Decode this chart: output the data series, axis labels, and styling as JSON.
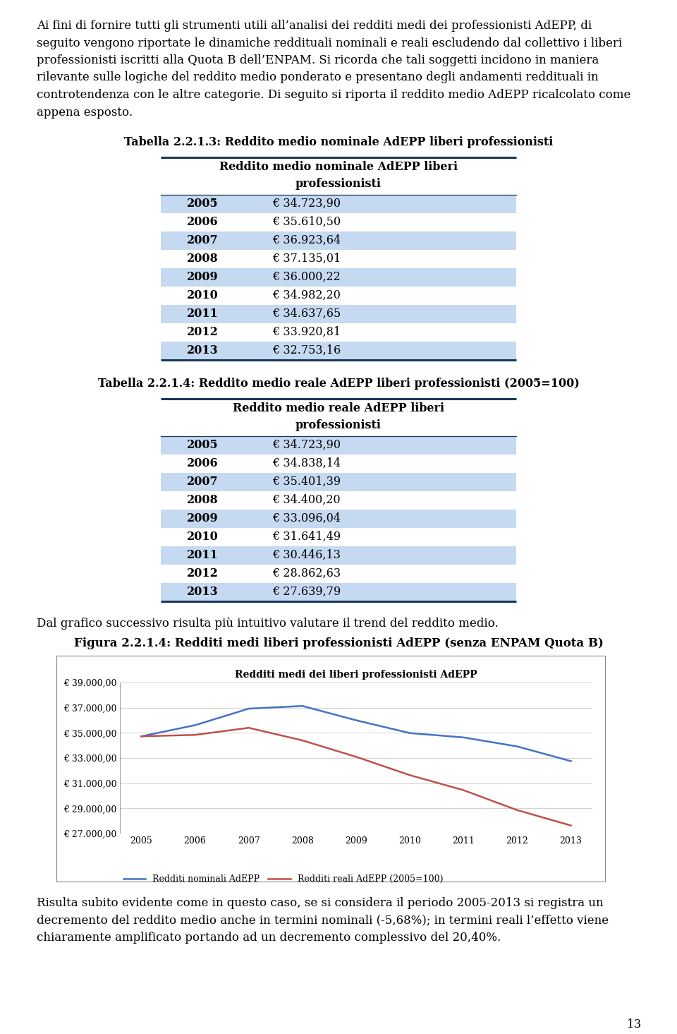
{
  "intro_lines": [
    "Ai fini di fornire tutti gli strumenti utili all’analisi dei redditi medi dei professionisti AdEPP, di",
    "seguito vengono riportate le dinamiche reddituali nominali e reali escludendo dal collettivo i liberi",
    "professionisti iscritti alla Quota B dell’ENPAM. Si ricorda che tali soggetti incidono in maniera",
    "rilevante sulle logiche del reddito medio ponderato e presentano degli andamenti reddituali in",
    "controtendenza con le altre categorie. Di seguito si riporta il reddito medio AdEPP ricalcolato come",
    "appena esposto."
  ],
  "table1_title": "Tabella 2.2.1.3: Reddito medio nominale AdEPP liberi professionisti",
  "table1_header_line1": "Reddito medio nominale AdEPP liberi",
  "table1_header_line2": "professionisti",
  "table1_years": [
    "2005",
    "2006",
    "2007",
    "2008",
    "2009",
    "2010",
    "2011",
    "2012",
    "2013"
  ],
  "table1_values": [
    "€ 34.723,90",
    "€ 35.610,50",
    "€ 36.923,64",
    "€ 37.135,01",
    "€ 36.000,22",
    "€ 34.982,20",
    "€ 34.637,65",
    "€ 33.920,81",
    "€ 32.753,16"
  ],
  "table2_title": "Tabella 2.2.1.4: Reddito medio reale AdEPP liberi professionisti (2005=100)",
  "table2_header_line1": "Reddito medio reale AdEPP liberi",
  "table2_header_line2": "professionisti",
  "table2_years": [
    "2005",
    "2006",
    "2007",
    "2008",
    "2009",
    "2010",
    "2011",
    "2012",
    "2013"
  ],
  "table2_values": [
    "€ 34.723,90",
    "€ 34.838,14",
    "€ 35.401,39",
    "€ 34.400,20",
    "€ 33.096,04",
    "€ 31.641,49",
    "€ 30.446,13",
    "€ 28.862,63",
    "€ 27.639,79"
  ],
  "text_mid": "Dal grafico successivo risulta più intuitivo valutare il trend del reddito medio.",
  "fig_title": "Figura 2.2.1.4: Redditi medi liberi professionisti AdEPP (senza ENPAM Quota B)",
  "chart_title": "Redditi medi dei liberi professionisti AdEPP",
  "years": [
    2005,
    2006,
    2007,
    2008,
    2009,
    2010,
    2011,
    2012,
    2013
  ],
  "nominal_values": [
    34723.9,
    35610.5,
    36923.64,
    37135.01,
    36000.22,
    34982.2,
    34637.65,
    33920.81,
    32753.16
  ],
  "real_values": [
    34723.9,
    34838.14,
    35401.39,
    34400.2,
    33096.04,
    31641.49,
    30446.13,
    28862.63,
    27639.79
  ],
  "nominal_color": "#4472C4",
  "real_color": "#C0504D",
  "ylim_min": 27000,
  "ylim_max": 39000,
  "yticks": [
    27000,
    29000,
    31000,
    33000,
    35000,
    37000,
    39000
  ],
  "ytick_labels": [
    "€ 27.000,00",
    "€ 29.000,00",
    "€ 31.000,00",
    "€ 33.000,00",
    "€ 35.000,00",
    "€ 37.000,00",
    "€ 39.000,00"
  ],
  "legend_nominal": "Redditi nominali AdEPP",
  "legend_real": "Redditi reali AdEPP (2005=100)",
  "outro_lines": [
    "Risulta subito evidente come in questo caso, se si considera il periodo 2005-2013 si registra un",
    "decremento del reddito medio anche in termini nominali (-5,68%); in termini reali l’effetto viene",
    "chiaramente amplificato portando ad un decremento complessivo del 20,40%."
  ],
  "page_number": "13",
  "alt_row_color": "#C5D9F1",
  "white_row_color": "#FFFFFF",
  "table_line_color": "#17375E",
  "bg_color": "#FFFFFF",
  "text_color": "#000000"
}
